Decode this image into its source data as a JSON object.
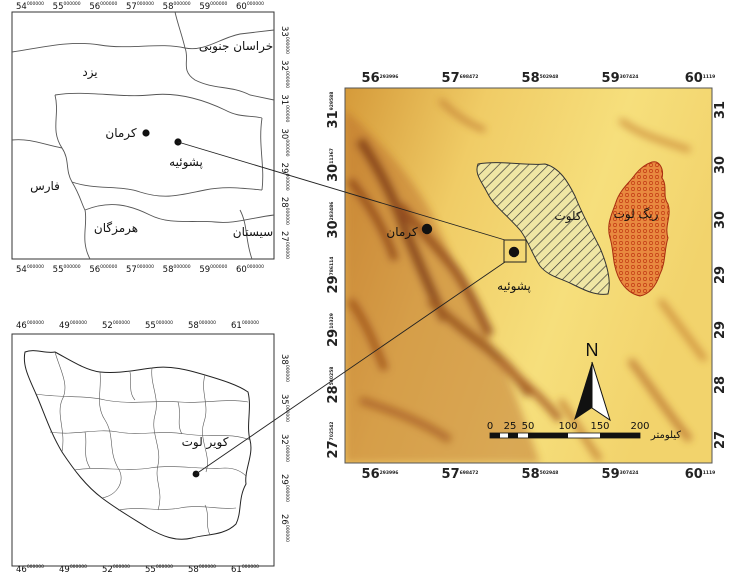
{
  "inset_kerman": {
    "x_ticks": [
      {
        "main": "54",
        "sup": "000000"
      },
      {
        "main": "55",
        "sup": "000000"
      },
      {
        "main": "56",
        "sup": "000000"
      },
      {
        "main": "57",
        "sup": "000000"
      },
      {
        "main": "58",
        "sup": "000000"
      },
      {
        "main": "59",
        "sup": "000000"
      },
      {
        "main": "60",
        "sup": "000000"
      }
    ],
    "y_ticks": [
      {
        "main": "33",
        "sup": "000000"
      },
      {
        "main": "32",
        "sup": "000000"
      },
      {
        "main": "31",
        "sup": "000000"
      },
      {
        "main": "30",
        "sup": "000000"
      },
      {
        "main": "29",
        "sup": "000000"
      },
      {
        "main": "28",
        "sup": "000000"
      },
      {
        "main": "27",
        "sup": "000000"
      }
    ],
    "places": {
      "khorasan": "خراسان جنوبی",
      "yazd": "یزد",
      "kerman": "کرمان",
      "shahdad": "پشوئیه",
      "fars": "فارس",
      "hormozgan": "هرمزگان",
      "sistan": "سیستان"
    }
  },
  "inset_iran": {
    "x_ticks": [
      {
        "main": "46",
        "sup": "000000"
      },
      {
        "main": "49",
        "sup": "000000"
      },
      {
        "main": "52",
        "sup": "000000"
      },
      {
        "main": "55",
        "sup": "000000"
      },
      {
        "main": "58",
        "sup": "000000"
      },
      {
        "main": "61",
        "sup": "000000"
      }
    ],
    "y_ticks": [
      {
        "main": "38",
        "sup": "000000"
      },
      {
        "main": "35",
        "sup": "000000"
      },
      {
        "main": "32",
        "sup": "000000"
      },
      {
        "main": "29",
        "sup": "000000"
      },
      {
        "main": "26",
        "sup": "000000"
      }
    ],
    "places": {
      "lut": "کویر لوت"
    }
  },
  "main_map": {
    "x_ticks": [
      {
        "main": "56",
        "sup": "293996"
      },
      {
        "main": "57",
        "sup": "698472"
      },
      {
        "main": "58",
        "sup": "502948"
      },
      {
        "main": "59",
        "sup": "307424"
      },
      {
        "main": "60",
        "sup": "1119"
      }
    ],
    "y_ticks": [
      {
        "main": "31",
        "sup": "929588"
      },
      {
        "main": "30",
        "sup": "11367"
      },
      {
        "main": "30",
        "sup": "283486"
      },
      {
        "main": "29",
        "sup": "786114"
      },
      {
        "main": "29",
        "sup": "10329"
      },
      {
        "main": "28",
        "sup": "540258"
      },
      {
        "main": "27",
        "sup": "702542"
      }
    ],
    "right_ticks": [
      {
        "main": "31",
        "sup": ""
      },
      {
        "main": "30",
        "sup": ""
      },
      {
        "main": "30",
        "sup": ""
      },
      {
        "main": "29",
        "sup": ""
      },
      {
        "main": "29",
        "sup": ""
      },
      {
        "main": "28",
        "sup": ""
      },
      {
        "main": "27",
        "sup": ""
      }
    ],
    "places": {
      "kalut": "کلوت",
      "reg_lut": "ریگ لوت",
      "kerman": "کرمان",
      "shahdad": "پشوئیه"
    },
    "north_label": "N",
    "scale": {
      "labels": [
        "0",
        "25",
        "50",
        "100",
        "150",
        "200"
      ],
      "unit": "کیلومتر"
    }
  },
  "colors": {
    "relief_light": "#f4da6a",
    "relief_dark": "#8a3e14",
    "reg_lut": "#e8893f"
  }
}
